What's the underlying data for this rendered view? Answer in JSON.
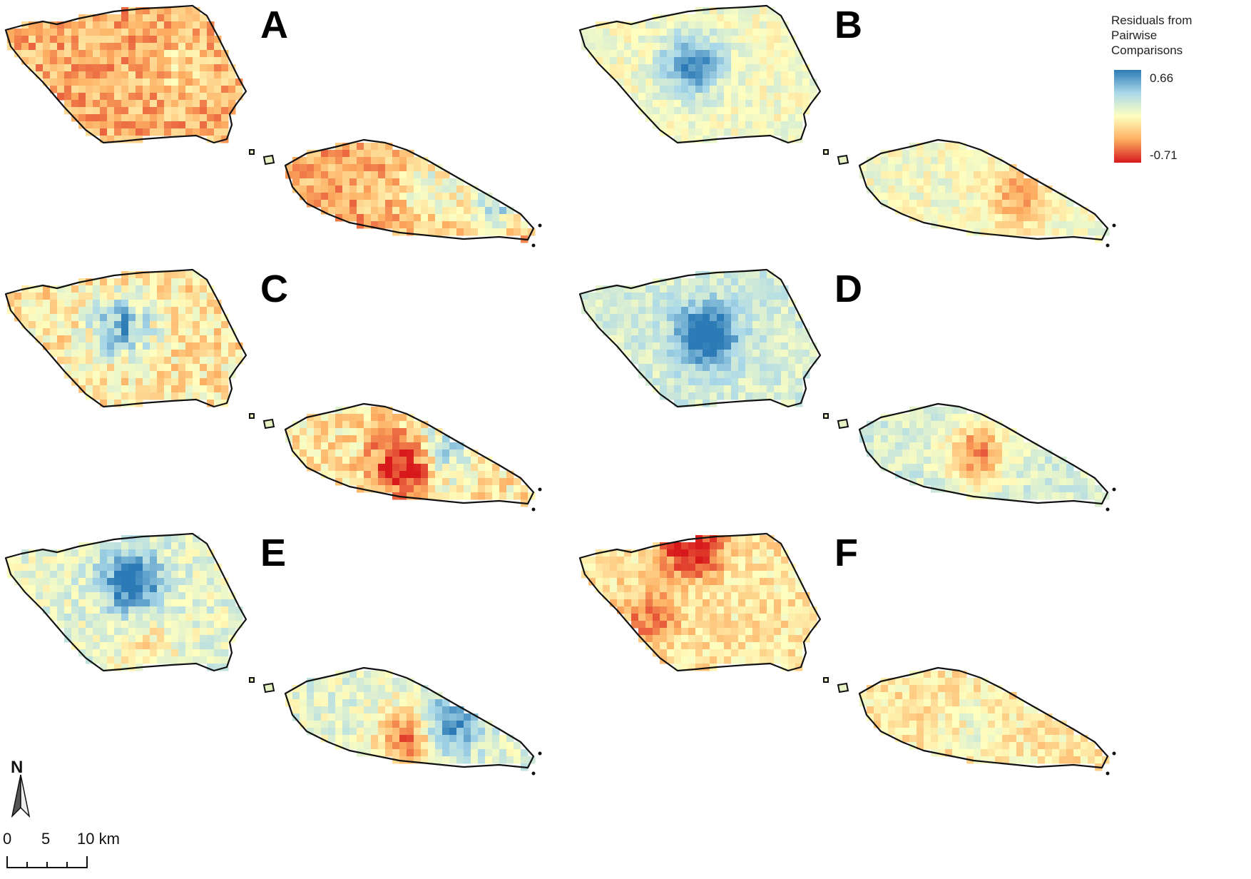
{
  "figure": {
    "panels": [
      {
        "label": "A",
        "palette": "warm"
      },
      {
        "label": "B",
        "palette": "neutral"
      },
      {
        "label": "C",
        "palette": "mixed"
      },
      {
        "label": "D",
        "palette": "cool"
      },
      {
        "label": "E",
        "palette": "coolwest"
      },
      {
        "label": "F",
        "palette": "warmlight"
      }
    ]
  },
  "legend": {
    "title": "Residuals from\nPairwise\nComparisons",
    "max_label": "0.66",
    "min_label": "-0.71",
    "colors": [
      "#2c7bb6",
      "#abd9e9",
      "#ffffbf",
      "#fdae61",
      "#d7191c"
    ]
  },
  "north_arrow": {
    "letter": "N"
  },
  "scale_bar": {
    "tick_labels": [
      "0",
      "5",
      "10 km"
    ]
  }
}
